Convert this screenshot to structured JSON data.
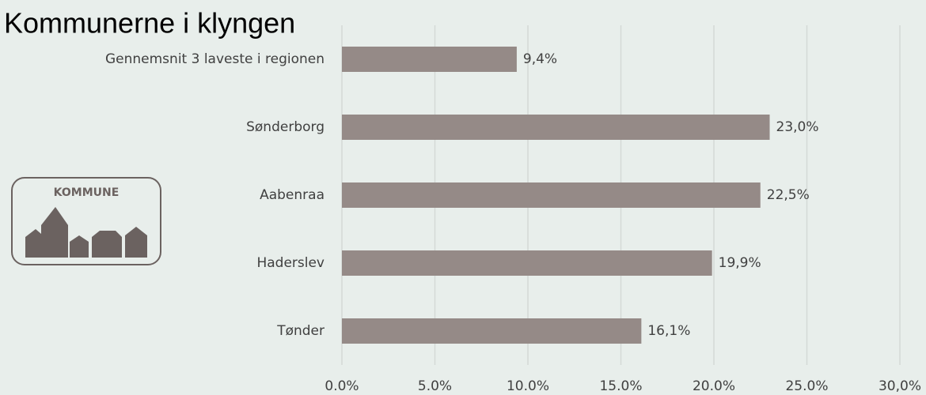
{
  "chart_data": {
    "type": "bar",
    "orientation": "horizontal",
    "title": "Kommunerne i klyngen",
    "badge": "KOMMUNE",
    "categories": [
      "Gennemsnit 3 laveste i regionen",
      "Sønderborg",
      "Aabenraa",
      "Haderslev",
      "Tønder"
    ],
    "values": [
      9.4,
      23.0,
      22.5,
      19.9,
      16.1
    ],
    "value_labels": [
      "9,4%",
      "23,0%",
      "22,5%",
      "19,9%",
      "16,1%"
    ],
    "color": "#958a87",
    "xlim": [
      0,
      30
    ],
    "xticks": [
      {
        "value": 0,
        "label": "0.0%"
      },
      {
        "value": 5,
        "label": "5.0%"
      },
      {
        "value": 10,
        "label": "10.0%"
      },
      {
        "value": 15,
        "label": "15.0%"
      },
      {
        "value": 20,
        "label": "20.0%"
      },
      {
        "value": 25,
        "label": "25.0%"
      },
      {
        "value": 30,
        "label": "30,0%"
      }
    ],
    "grid": true
  }
}
